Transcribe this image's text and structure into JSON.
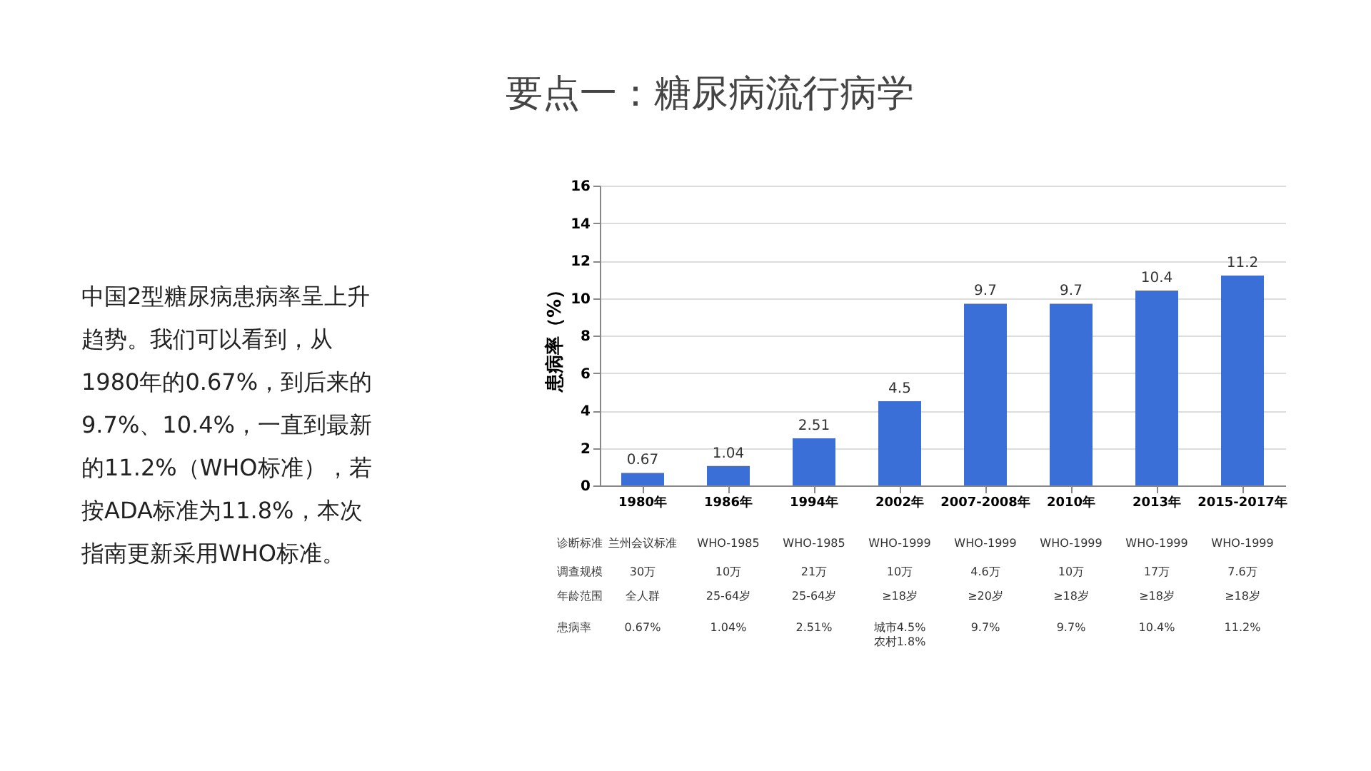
{
  "chart_data": {
    "type": "bar",
    "title": "要点一：糖尿病流行病学",
    "ylabel": "患病率（%）",
    "categories": [
      "1980年",
      "1986年",
      "1994年",
      "2002年",
      "2007-2008年",
      "2010年",
      "2013年",
      "2015-2017年"
    ],
    "values": [
      0.67,
      1.04,
      2.51,
      4.5,
      9.7,
      9.7,
      10.4,
      11.2
    ],
    "colors": [
      "#3a6fd8",
      "#3a6fd8",
      "#3a6fd8",
      "#3a6fd8",
      "#3a6fd8",
      "#3a6fd8",
      "#3a6fd8",
      "#3a6fd8"
    ],
    "ylim": [
      0,
      16
    ],
    "yticks": [
      0,
      2,
      4,
      6,
      8,
      10,
      12,
      14,
      16
    ],
    "grid": "y",
    "data_labels": true,
    "annotations": [
      "中国2型糖尿病患病率呈上升",
      "趋势。我们可以看到，从",
      "1980年的0.67%，到后来的",
      "9.7%、10.4%，一直到最新",
      "的11.2%（WHO标准），若",
      "按ADA标准为11.8%，本次",
      "指南更新采用WHO标准。",
      "诊断标准",
      "兰州会议标准",
      "WHO-1985",
      "WHO-1985",
      "WHO-1999",
      "WHO-1999",
      "WHO-1999",
      "WHO-1999",
      "WHO-1999",
      "调查规模",
      "30万",
      "10万",
      "21万",
      "10万",
      "4.6万",
      "10万",
      "17万",
      "7.6万",
      "年龄范围",
      "全人群",
      "25-64岁",
      "25-64岁",
      "≥18岁",
      "≥20岁",
      "≥18岁",
      "≥18岁",
      "≥18岁",
      "患病率",
      "0.67%",
      "1.04%",
      "2.51%",
      "城市4.5%\n农村1.8%",
      "9.7%",
      "9.7%",
      "10.4%",
      "11.2%"
    ]
  }
}
